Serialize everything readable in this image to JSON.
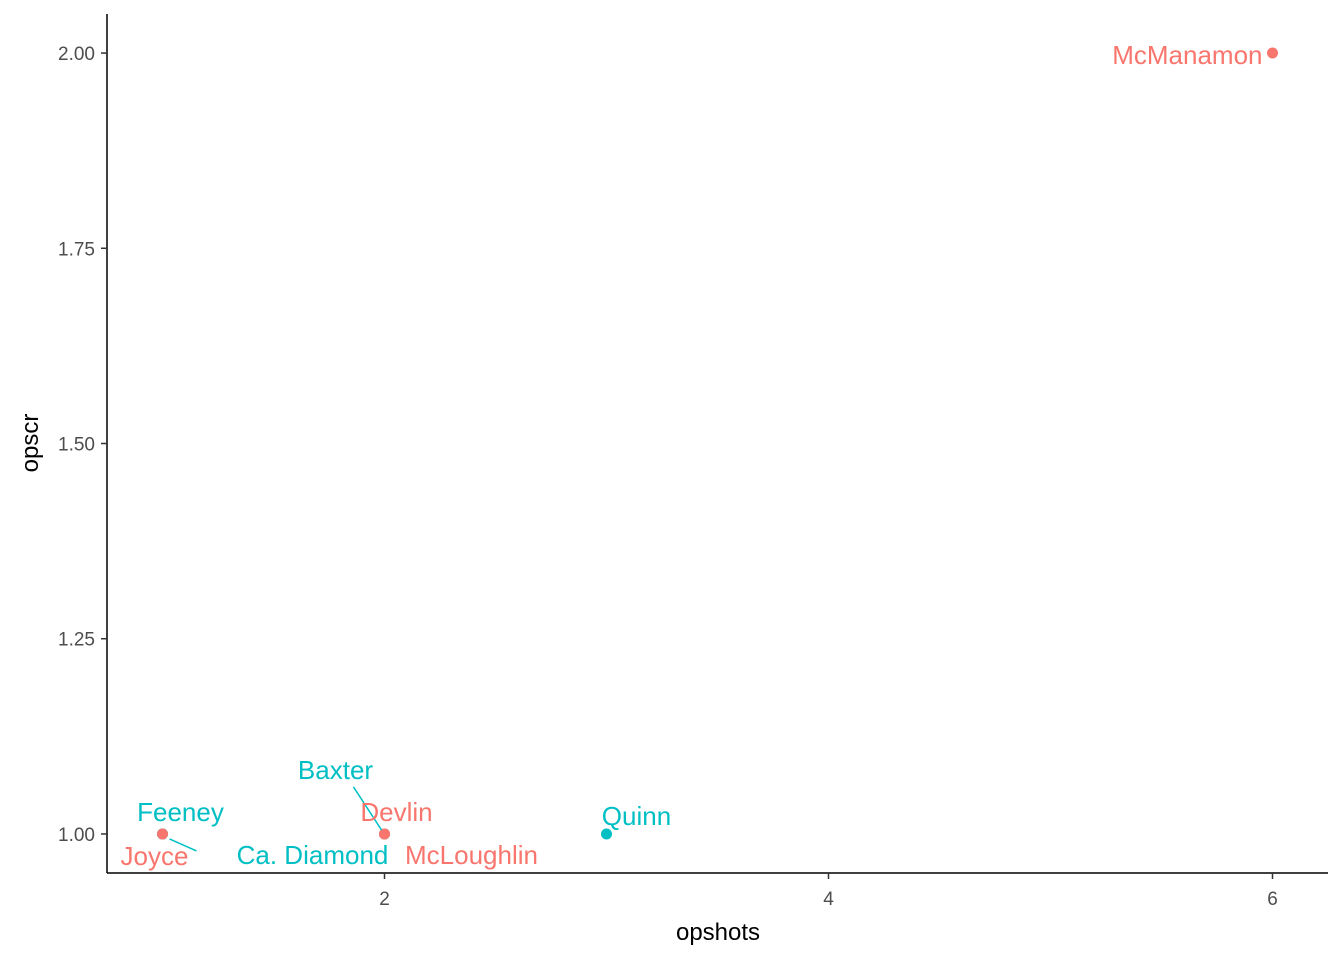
{
  "chart_data": {
    "type": "scatter",
    "xlabel": "opshots",
    "ylabel": "opscr",
    "xlim": [
      0.75,
      6.25
    ],
    "ylim": [
      0.95,
      2.05
    ],
    "x_ticks": [
      2,
      4,
      6
    ],
    "x_tick_labels": [
      "2",
      "4",
      "6"
    ],
    "y_ticks": [
      1.0,
      1.25,
      1.5,
      1.75,
      2.0
    ],
    "y_tick_labels": [
      "1.00",
      "1.25",
      "1.50",
      "1.75",
      "2.00"
    ],
    "grid": false,
    "legend": "none",
    "colors": {
      "red": "#F8766D",
      "teal": "#00BFC4",
      "axis": "#000000",
      "tick_text": "#4d4d4d"
    },
    "points": [
      {
        "label": "Feeney",
        "x": 1,
        "y": 1.0,
        "color": "teal"
      },
      {
        "label": "Ca. Diamond",
        "x": 1,
        "y": 1.0,
        "color": "teal"
      },
      {
        "label": "Joyce",
        "x": 1,
        "y": 1.0,
        "color": "red"
      },
      {
        "label": "Baxter",
        "x": 2,
        "y": 1.0,
        "color": "teal"
      },
      {
        "label": "Devlin",
        "x": 2,
        "y": 1.0,
        "color": "red"
      },
      {
        "label": "McLoughlin",
        "x": 2,
        "y": 1.0,
        "color": "red"
      },
      {
        "label": "Quinn",
        "x": 3,
        "y": 1.0,
        "color": "teal"
      },
      {
        "label": "McManamon",
        "x": 6,
        "y": 2.0,
        "color": "red"
      }
    ]
  }
}
